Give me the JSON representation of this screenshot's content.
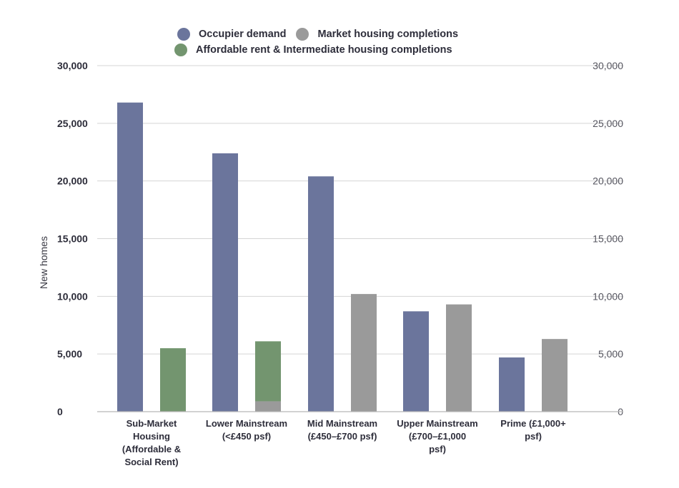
{
  "chart_data": {
    "type": "bar",
    "ylabel": "New homes",
    "ylim": [
      0,
      30000
    ],
    "yticks": [
      0,
      5000,
      10000,
      15000,
      20000,
      25000,
      30000
    ],
    "ytick_labels": [
      "0",
      "5,000",
      "10,000",
      "15,000",
      "20,000",
      "25,000",
      "30,000"
    ],
    "secondary_ytick_labels": [
      "0",
      "5,000",
      "10,000",
      "15,000",
      "20,000",
      "25,000",
      "30,000"
    ],
    "grid": true,
    "legend_position": "top-center",
    "categories": [
      [
        "Sub-Market",
        "Housing",
        "(Affordable &",
        "Social Rent)"
      ],
      [
        "Lower Mainstream",
        "(<£450 psf)"
      ],
      [
        "Mid Mainstream",
        "(£450–£700 psf)"
      ],
      [
        "Upper Mainstream",
        "(£700–£1,000",
        "psf)"
      ],
      [
        "Prime (£1,000+",
        "psf)"
      ]
    ],
    "series": [
      {
        "name": "Occupier demand",
        "color": "#6b759c",
        "values": [
          26800,
          22400,
          20400,
          8700,
          4700
        ]
      },
      {
        "name": "Market housing completions",
        "color": "#9a9a9a",
        "values": [
          0,
          900,
          10200,
          9300,
          6300
        ]
      },
      {
        "name": "Affordable rent & Intermediate housing completions",
        "color": "#73956f",
        "values": [
          5500,
          5200,
          0,
          0,
          0
        ]
      }
    ]
  },
  "legend": {
    "items": [
      {
        "label": "Occupier demand",
        "color": "#6b759c"
      },
      {
        "label": "Market housing completions",
        "color": "#9a9a9a"
      },
      {
        "label": "Affordable rent & Intermediate housing completions",
        "color": "#73956f"
      }
    ]
  }
}
